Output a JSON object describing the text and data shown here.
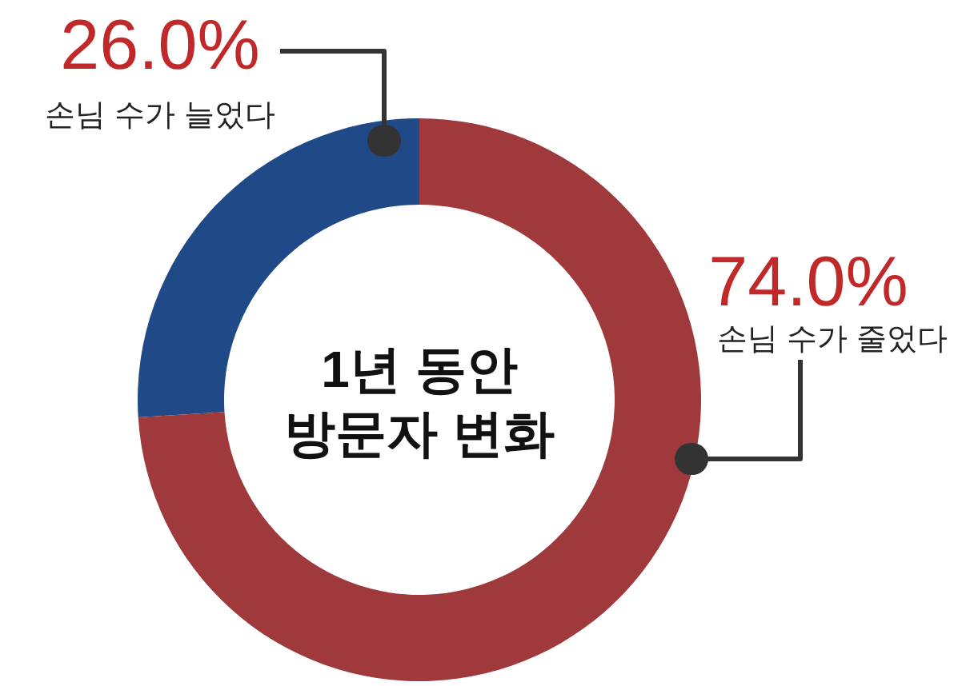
{
  "chart_data": {
    "type": "donut",
    "title": "1년 동안\n방문자 변화",
    "categories": [
      "손님 수가 늘었다",
      "손님 수가 줄었다"
    ],
    "values": [
      26.0,
      74.0
    ],
    "colors": [
      "#1f4a87",
      "#a0393b"
    ],
    "value_labels": [
      "26.0%",
      "74.0%"
    ],
    "legend": false
  }
}
